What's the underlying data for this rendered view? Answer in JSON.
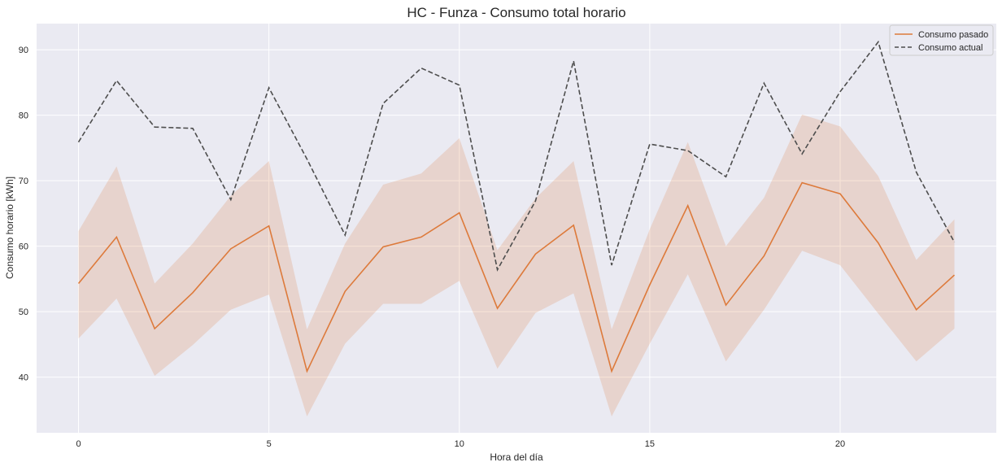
{
  "chart_data": {
    "type": "line",
    "title": "HC - Funza - Consumo total horario",
    "xlabel": "Hora del día",
    "ylabel": "Consumo horario [kWh]",
    "xlim": [
      -1.1,
      24.1
    ],
    "ylim": [
      31.5,
      94
    ],
    "xticks": [
      0,
      5,
      10,
      15,
      20
    ],
    "yticks": [
      40,
      50,
      60,
      70,
      80,
      90
    ],
    "grid": true,
    "legend_position": "top-right",
    "x": [
      0,
      1,
      2,
      3,
      4,
      5,
      6,
      7,
      8,
      9,
      10,
      11,
      12,
      13,
      14,
      15,
      16,
      17,
      18,
      19,
      20,
      21,
      22,
      23
    ],
    "series": [
      {
        "name": "Consumo pasado",
        "style": "solid",
        "color": "#dd7a3b",
        "values": [
          54.3,
          61.4,
          47.4,
          52.9,
          59.6,
          63.1,
          40.9,
          53.1,
          59.9,
          61.4,
          65.1,
          50.5,
          58.8,
          63.2,
          40.9,
          54.1,
          66.2,
          51.0,
          58.5,
          69.7,
          68.0,
          60.5,
          50.3,
          55.6
        ],
        "ci_lower": [
          45.9,
          52.0,
          40.2,
          44.9,
          50.3,
          52.6,
          34.0,
          45.1,
          51.2,
          51.2,
          54.7,
          41.3,
          49.8,
          52.8,
          34.0,
          45.1,
          55.7,
          42.4,
          50.3,
          59.3,
          57.1,
          49.7,
          42.4,
          47.4
        ],
        "ci_upper": [
          62.3,
          72.2,
          54.3,
          60.4,
          67.7,
          73.0,
          47.3,
          60.4,
          69.4,
          71.1,
          76.5,
          59.4,
          67.3,
          73.0,
          47.3,
          62.6,
          75.9,
          60.0,
          67.4,
          80.1,
          78.3,
          70.7,
          57.9,
          64.1
        ]
      },
      {
        "name": "Consumo actual",
        "style": "dashed",
        "color": "#4d4d4d",
        "values": [
          75.9,
          85.3,
          78.2,
          78.0,
          67.1,
          84.2,
          73.3,
          61.7,
          81.8,
          87.2,
          84.6,
          56.4,
          66.9,
          88.3,
          57.1,
          75.6,
          74.6,
          70.6,
          84.9,
          74.1,
          83.6,
          91.2,
          71.3,
          60.6
        ]
      }
    ]
  }
}
